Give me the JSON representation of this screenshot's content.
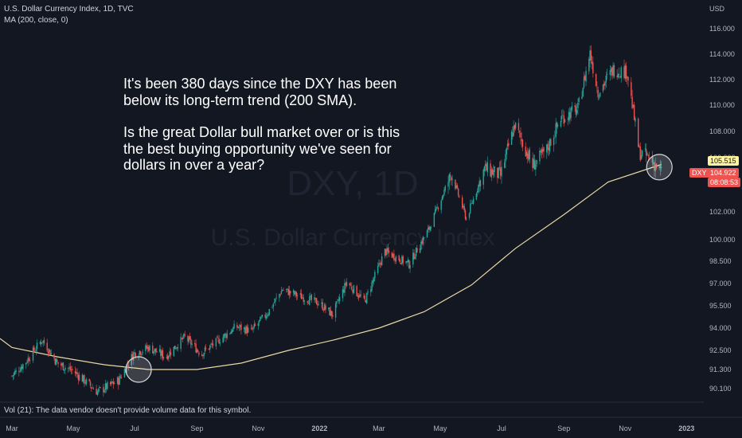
{
  "legend": {
    "title": "U.S. Dollar Currency Index, 1D, TVC",
    "indicator": "MA (200, close, 0)"
  },
  "watermark": {
    "symbol": "DXY, 1D",
    "name": "U.S. Dollar Currency Index"
  },
  "annotation": {
    "line1": "It's been 380 days since the DXY has been below its long-term trend (200 SMA).",
    "line2": "Is the great Dollar bull market over or is this the best buying opportunity we've seen for dollars in over a year?"
  },
  "volume_note": "Vol (21): The data vendor doesn't provide volume data for this symbol.",
  "price_tags": {
    "ma_value": "105.515",
    "symbol": "DXY",
    "last_price": "104.922",
    "countdown": "08:08:53"
  },
  "colors": {
    "background": "#131722",
    "up": "#26a69a",
    "down": "#ef5350",
    "ma": "#e8d9a3",
    "ma_tag": "#fff59d",
    "price_tag": "#ef5350"
  },
  "chart_data": {
    "type": "candlestick",
    "title": "U.S. Dollar Currency Index, 1D, TVC",
    "y_unit": "USD",
    "y_ticks": [
      "116.000",
      "114.000",
      "112.000",
      "110.000",
      "108.000",
      "106.000",
      "104.000",
      "102.000",
      "100.000",
      "98.500",
      "97.000",
      "95.500",
      "94.000",
      "92.500",
      "91.300",
      "90.100"
    ],
    "x_ticks": [
      "Mar",
      "May",
      "Jul",
      "Sep",
      "Nov",
      "2022",
      "Mar",
      "May",
      "Jul",
      "Sep",
      "Nov",
      "2023"
    ],
    "ylim": [
      89.5,
      116.8
    ],
    "close_series": [
      {
        "date": "2021-03-01",
        "close": 90.9
      },
      {
        "date": "2021-03-15",
        "close": 91.8
      },
      {
        "date": "2021-03-31",
        "close": 93.2
      },
      {
        "date": "2021-04-15",
        "close": 91.7
      },
      {
        "date": "2021-05-01",
        "close": 91.2
      },
      {
        "date": "2021-05-25",
        "close": 89.9
      },
      {
        "date": "2021-06-15",
        "close": 90.6
      },
      {
        "date": "2021-06-30",
        "close": 92.3
      },
      {
        "date": "2021-07-15",
        "close": 92.7
      },
      {
        "date": "2021-08-01",
        "close": 92.1
      },
      {
        "date": "2021-08-20",
        "close": 93.4
      },
      {
        "date": "2021-09-05",
        "close": 92.3
      },
      {
        "date": "2021-09-25",
        "close": 93.3
      },
      {
        "date": "2021-10-10",
        "close": 94.1
      },
      {
        "date": "2021-10-25",
        "close": 93.8
      },
      {
        "date": "2021-11-10",
        "close": 95.0
      },
      {
        "date": "2021-11-25",
        "close": 96.6
      },
      {
        "date": "2021-12-10",
        "close": 96.2
      },
      {
        "date": "2021-12-31",
        "close": 95.7
      },
      {
        "date": "2022-01-14",
        "close": 94.9
      },
      {
        "date": "2022-01-28",
        "close": 97.1
      },
      {
        "date": "2022-02-15",
        "close": 95.8
      },
      {
        "date": "2022-03-07",
        "close": 99.2
      },
      {
        "date": "2022-03-31",
        "close": 98.3
      },
      {
        "date": "2022-04-20",
        "close": 100.8
      },
      {
        "date": "2022-05-12",
        "close": 104.8
      },
      {
        "date": "2022-05-27",
        "close": 101.5
      },
      {
        "date": "2022-06-14",
        "close": 105.2
      },
      {
        "date": "2022-06-30",
        "close": 104.7
      },
      {
        "date": "2022-07-14",
        "close": 108.5
      },
      {
        "date": "2022-08-01",
        "close": 105.4
      },
      {
        "date": "2022-08-15",
        "close": 106.6
      },
      {
        "date": "2022-08-29",
        "close": 109.0
      },
      {
        "date": "2022-09-15",
        "close": 109.7
      },
      {
        "date": "2022-09-27",
        "close": 114.1
      },
      {
        "date": "2022-10-05",
        "close": 111.0
      },
      {
        "date": "2022-10-20",
        "close": 112.8
      },
      {
        "date": "2022-11-03",
        "close": 112.6
      },
      {
        "date": "2022-11-15",
        "close": 106.4
      },
      {
        "date": "2022-11-25",
        "close": 106.0
      },
      {
        "date": "2022-12-07",
        "close": 104.9
      }
    ],
    "ma_series": [
      {
        "date": "2021-03-01",
        "value": 92.7
      },
      {
        "date": "2021-04-15",
        "value": 92.1
      },
      {
        "date": "2021-06-01",
        "value": 91.6
      },
      {
        "date": "2021-07-15",
        "value": 91.3
      },
      {
        "date": "2021-09-01",
        "value": 91.3
      },
      {
        "date": "2021-10-15",
        "value": 91.7
      },
      {
        "date": "2021-12-01",
        "value": 92.5
      },
      {
        "date": "2022-01-15",
        "value": 93.2
      },
      {
        "date": "2022-03-01",
        "value": 94.0
      },
      {
        "date": "2022-04-15",
        "value": 95.1
      },
      {
        "date": "2022-06-01",
        "value": 96.9
      },
      {
        "date": "2022-07-15",
        "value": 99.4
      },
      {
        "date": "2022-09-01",
        "value": 101.8
      },
      {
        "date": "2022-10-15",
        "value": 104.2
      },
      {
        "date": "2022-12-07",
        "value": 105.5
      }
    ],
    "annotations": [
      {
        "type": "circle",
        "date": "2021-07-05",
        "value": 91.3
      },
      {
        "type": "circle",
        "date": "2022-12-05",
        "value": 105.3
      }
    ],
    "grid": false,
    "legend": "top-left"
  }
}
